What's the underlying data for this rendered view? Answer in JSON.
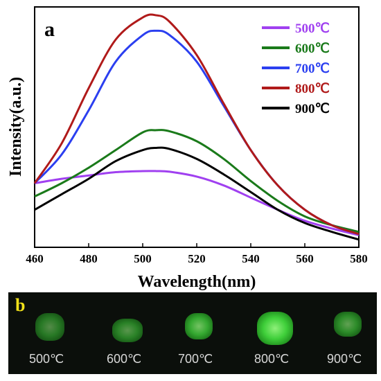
{
  "chart_data": {
    "type": "line",
    "panel_label": "a",
    "xlabel": "Wavelength(nm)",
    "ylabel": "Intensity(a.u.)",
    "xlim": [
      460,
      580
    ],
    "ylim": [
      0,
      1
    ],
    "xticks": [
      460,
      480,
      500,
      520,
      540,
      560,
      580
    ],
    "grid": false,
    "legend_position": "top-right",
    "series": [
      {
        "name": "500℃",
        "color": "#a040f0",
        "x": [
          460,
          470,
          480,
          490,
          500,
          505,
          510,
          520,
          530,
          540,
          550,
          560,
          570,
          580
        ],
        "values": [
          0.29,
          0.31,
          0.325,
          0.34,
          0.345,
          0.345,
          0.342,
          0.32,
          0.28,
          0.225,
          0.17,
          0.12,
          0.085,
          0.055
        ]
      },
      {
        "name": "600℃",
        "color": "#1a7a1a",
        "x": [
          460,
          470,
          480,
          490,
          500,
          505,
          510,
          520,
          530,
          540,
          550,
          560,
          570,
          580
        ],
        "values": [
          0.23,
          0.29,
          0.36,
          0.44,
          0.52,
          0.53,
          0.525,
          0.48,
          0.4,
          0.3,
          0.21,
          0.14,
          0.1,
          0.07
        ]
      },
      {
        "name": "700℃",
        "color": "#2b3ff0",
        "x": [
          460,
          470,
          480,
          490,
          500,
          505,
          510,
          520,
          530,
          540,
          550,
          560,
          570,
          580
        ],
        "values": [
          0.29,
          0.42,
          0.62,
          0.84,
          0.96,
          0.98,
          0.96,
          0.84,
          0.64,
          0.44,
          0.28,
          0.17,
          0.1,
          0.06
        ]
      },
      {
        "name": "800℃",
        "color": "#b01a1a",
        "x": [
          460,
          470,
          480,
          490,
          500,
          505,
          510,
          520,
          530,
          540,
          550,
          560,
          570,
          580
        ],
        "values": [
          0.29,
          0.47,
          0.72,
          0.94,
          1.04,
          1.05,
          1.02,
          0.87,
          0.65,
          0.44,
          0.28,
          0.17,
          0.1,
          0.06
        ]
      },
      {
        "name": "900℃",
        "color": "#000000",
        "x": [
          460,
          470,
          480,
          490,
          500,
          505,
          510,
          520,
          530,
          540,
          550,
          560,
          570,
          580
        ],
        "values": [
          0.17,
          0.24,
          0.31,
          0.39,
          0.44,
          0.45,
          0.445,
          0.4,
          0.33,
          0.25,
          0.17,
          0.11,
          0.07,
          0.035
        ]
      }
    ]
  },
  "photo_panel": {
    "panel_label": "b",
    "samples": [
      {
        "label": "500℃",
        "brightness": 0.55
      },
      {
        "label": "600℃",
        "brightness": 0.6
      },
      {
        "label": "700℃",
        "brightness": 0.8
      },
      {
        "label": "800℃",
        "brightness": 1.0
      },
      {
        "label": "900℃",
        "brightness": 0.65
      }
    ]
  }
}
